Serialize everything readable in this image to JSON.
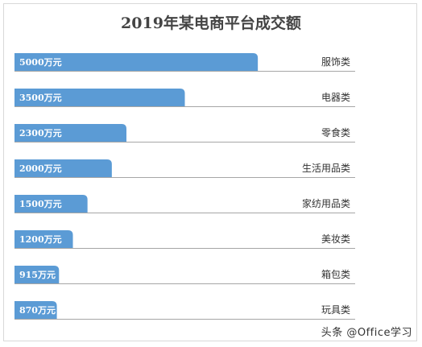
{
  "chart_data": {
    "type": "bar",
    "orientation": "horizontal",
    "title": "2019年某电商平台成交额",
    "categories": [
      "服饰类",
      "电器类",
      "零食类",
      "生活用品类",
      "家纺用品类",
      "美妆类",
      "箱包类",
      "玩具类"
    ],
    "values": [
      5000,
      3500,
      2300,
      2000,
      1500,
      1200,
      915,
      870
    ],
    "value_labels": [
      "5000万元",
      "3500万元",
      "2300万元",
      "2000万元",
      "1500万元",
      "1200万元",
      "915万元",
      "870万元"
    ],
    "unit": "万元",
    "xlim": [
      0,
      7000
    ],
    "bar_color": "#5b9bd5",
    "baseline_color": "#a6a6a6",
    "grid": false,
    "legend": "none"
  },
  "watermark": "头条 @Office学习"
}
